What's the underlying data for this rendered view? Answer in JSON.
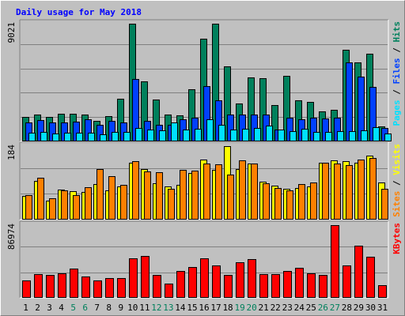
{
  "chart_data": {
    "title": "Daily usage for May 2018",
    "type": "bar",
    "days": [
      "1",
      "2",
      "3",
      "4",
      "5",
      "6",
      "7",
      "8",
      "9",
      "10",
      "11",
      "12",
      "13",
      "14",
      "15",
      "16",
      "17",
      "18",
      "19",
      "20",
      "21",
      "22",
      "23",
      "24",
      "25",
      "26",
      "27",
      "28",
      "29",
      "30",
      "31"
    ],
    "weekend_days": [
      "5",
      "6",
      "12",
      "13",
      "19",
      "20",
      "26",
      "27"
    ],
    "colors": {
      "hits": "#00805c",
      "files": "#0040ff",
      "pages": "#00e0ff",
      "visits": "#ffff00",
      "sites": "#ff8000",
      "kbytes": "#ff0000",
      "weekday_label": "#000000",
      "weekend_label": "#00805c"
    },
    "panels": [
      {
        "name": "hits-files-pages",
        "max_label": "9021",
        "ymax": 9021,
        "legend": [
          {
            "text": "Pages",
            "color": "#00e0ff"
          },
          {
            "text": "Files",
            "color": "#0040ff"
          },
          {
            "text": "Hits",
            "color": "#00805c"
          }
        ],
        "series": [
          {
            "name": "Hits",
            "color": "#00805c",
            "values": [
              1810,
              2030,
              1850,
              2090,
              2090,
              2030,
              1530,
              1910,
              3260,
              9020,
              4560,
              3170,
              2030,
              1970,
              3940,
              7840,
              9020,
              5710,
              2850,
              4850,
              4790,
              2720,
              5000,
              3090,
              3000,
              2230,
              2380,
              6980,
              6010,
              6730,
              1100
            ]
          },
          {
            "name": "Files",
            "color": "#0040ff",
            "values": [
              1390,
              1560,
              1390,
              1410,
              1470,
              1650,
              1200,
              1500,
              1390,
              4770,
              1520,
              1200,
              1220,
              1640,
              1750,
              4220,
              3100,
              2040,
              2040,
              2030,
              2010,
              880,
              1760,
              1660,
              1770,
              1690,
              1750,
              6060,
              4920,
              4140,
              990
            ]
          },
          {
            "name": "Pages",
            "color": "#00e0ff",
            "values": [
              600,
              690,
              520,
              580,
              620,
              630,
              500,
              680,
              680,
              980,
              870,
              820,
              1420,
              830,
              890,
              1640,
              1240,
              880,
              890,
              1000,
              1160,
              830,
              760,
              900,
              680,
              660,
              730,
              730,
              820,
              1050,
              520
            ]
          }
        ]
      },
      {
        "name": "visits-sites",
        "max_label": "184",
        "ymax": 184,
        "legend": [
          {
            "text": "Sites",
            "color": "#ff8000"
          },
          {
            "text": "Visits",
            "color": "#ffff00"
          }
        ],
        "series": [
          {
            "name": "Visits",
            "color": "#ffff00",
            "values": [
              58,
              96,
              45,
              74,
              70,
              68,
              87,
              71,
              82,
              142,
              127,
              90,
              82,
              85,
              116,
              150,
              123,
              184,
              127,
              140,
              93,
              84,
              75,
              78,
              81,
              141,
              148,
              145,
              142,
              159,
              91
            ]
          },
          {
            "name": "Sites",
            "color": "#ff8000",
            "values": [
              60,
              104,
              52,
              72,
              60,
              80,
              126,
              108,
              86,
              145,
              120,
              117,
              75,
              124,
              122,
              140,
              138,
              111,
              147,
              140,
              90,
              78,
              71,
              88,
              92,
              142,
              139,
              136,
              149,
              154,
              76
            ]
          }
        ]
      },
      {
        "name": "kbytes",
        "max_label": "86974",
        "ymax": 86974,
        "legend": [
          {
            "text": "KBytes",
            "color": "#ff0000"
          }
        ],
        "series": [
          {
            "name": "KBytes",
            "color": "#ff0000",
            "values": [
              20000,
              27500,
              26800,
              28300,
              34000,
              24400,
              20000,
              23300,
              22900,
              47000,
              50000,
              27100,
              16700,
              31700,
              36300,
              47200,
              38000,
              26300,
              42500,
              46100,
              27400,
              27800,
              31800,
              35300,
              28600,
              26800,
              86900,
              37800,
              62000,
              48600,
              14000
            ]
          }
        ]
      }
    ]
  }
}
